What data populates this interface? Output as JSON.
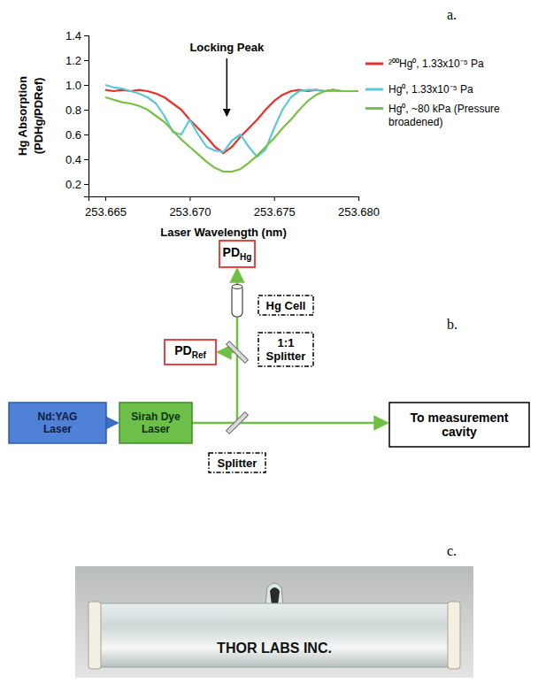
{
  "chart_data": {
    "type": "line",
    "label": "a.",
    "xlabel": "Laser Wavelength (nm)",
    "ylabel": [
      "Hg Absorption",
      "(PDHg/PDRef)"
    ],
    "x": [
      253.665,
      253.6655,
      253.666,
      253.6665,
      253.667,
      253.6675,
      253.668,
      253.6685,
      253.669,
      253.6695,
      253.67,
      253.6705,
      253.671,
      253.6715,
      253.672,
      253.6725,
      253.673,
      253.6735,
      253.674,
      253.6745,
      253.675,
      253.6755,
      253.676,
      253.6765,
      253.677,
      253.6775,
      253.678,
      253.6785,
      253.679,
      253.6795,
      253.68
    ],
    "series": [
      {
        "name": "²⁰⁰Hg⁰, 1.33x10⁻⁵ Pa",
        "color": "#e8312a",
        "values": [
          0.96,
          0.95,
          0.96,
          0.95,
          0.96,
          0.95,
          0.93,
          0.9,
          0.85,
          0.8,
          0.72,
          0.65,
          0.58,
          0.5,
          0.45,
          0.5,
          0.58,
          0.65,
          0.72,
          0.8,
          0.87,
          0.92,
          0.95,
          0.96,
          0.95,
          0.96,
          0.95,
          0.96,
          0.95,
          0.95,
          0.95
        ]
      },
      {
        "name": "Hg⁰, 1.33x10⁻⁵ Pa",
        "color": "#5bc8d8",
        "values": [
          1.0,
          0.98,
          0.97,
          0.95,
          0.93,
          0.9,
          0.85,
          0.75,
          0.62,
          0.6,
          0.72,
          0.6,
          0.5,
          0.47,
          0.46,
          0.55,
          0.6,
          0.5,
          0.42,
          0.48,
          0.65,
          0.8,
          0.9,
          0.95,
          0.96,
          0.96,
          0.95,
          0.95,
          0.95,
          0.95,
          0.95
        ]
      },
      {
        "name": "Hg⁰, ~80 kPa (Pressure broadened)",
        "color": "#7ac143",
        "values": [
          0.9,
          0.88,
          0.86,
          0.85,
          0.83,
          0.8,
          0.75,
          0.7,
          0.63,
          0.56,
          0.5,
          0.44,
          0.38,
          0.33,
          0.3,
          0.3,
          0.32,
          0.37,
          0.43,
          0.5,
          0.57,
          0.65,
          0.72,
          0.8,
          0.87,
          0.92,
          0.95,
          0.96,
          0.95,
          0.95,
          0.95
        ]
      }
    ],
    "annotation": {
      "text": "Locking Peak",
      "x": 253.6722,
      "y": 0.75
    },
    "xlim": [
      253.664,
      253.68
    ],
    "xticks": [
      253.665,
      {
        "value": 253.67,
        "label": "253.670"
      },
      253.675,
      {
        "value": 253.68,
        "label": "253.680"
      }
    ],
    "ylim": [
      0.1,
      1.4
    ],
    "yticks": [
      0.2,
      0.4,
      0.6,
      0.8,
      {
        "value": 1,
        "label": "1.0"
      },
      1.2,
      1.4
    ],
    "grid": false,
    "legend": "right"
  },
  "diagram": {
    "label": "b.",
    "nodes": [
      {
        "label": "PD",
        "sub": "Hg"
      },
      {
        "label": "PD",
        "sub": "Ref"
      },
      {
        "label": "Hg Cell"
      },
      {
        "label": "1:1 Splitter"
      },
      {
        "label": "Nd:YAG Laser"
      },
      {
        "label": "Sirah Dye Laser"
      },
      {
        "label": "Splitter"
      },
      {
        "label": "To measurement cavity"
      }
    ]
  },
  "photo": {
    "label": "c.",
    "text": "THOR LABS INC."
  }
}
